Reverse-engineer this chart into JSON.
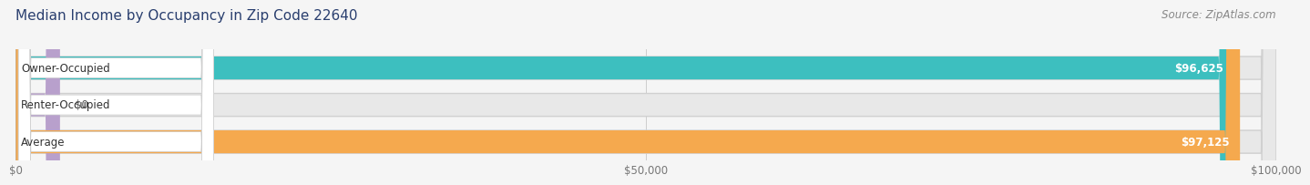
{
  "title": "Median Income by Occupancy in Zip Code 22640",
  "source": "Source: ZipAtlas.com",
  "categories": [
    "Owner-Occupied",
    "Renter-Occupied",
    "Average"
  ],
  "values": [
    96625,
    0,
    97125
  ],
  "bar_colors": [
    "#3dbfbf",
    "#b8a0cc",
    "#f5a94e"
  ],
  "bar_labels": [
    "$96,625",
    "$0",
    "$97,125"
  ],
  "x_max": 100000,
  "x_ticks": [
    0,
    50000,
    100000
  ],
  "x_tick_labels": [
    "$0",
    "$50,000",
    "$100,000"
  ],
  "title_color": "#2a3f6f",
  "source_color": "#888888",
  "bg_color": "#f5f5f5",
  "bar_bg_color": "#e8e8e8",
  "bar_bg_border": "#d0d0d0",
  "title_fontsize": 11,
  "source_fontsize": 8.5,
  "bar_label_fontsize": 8.5,
  "category_label_fontsize": 8.5,
  "tick_fontsize": 8.5,
  "renter_small_value": 3500
}
